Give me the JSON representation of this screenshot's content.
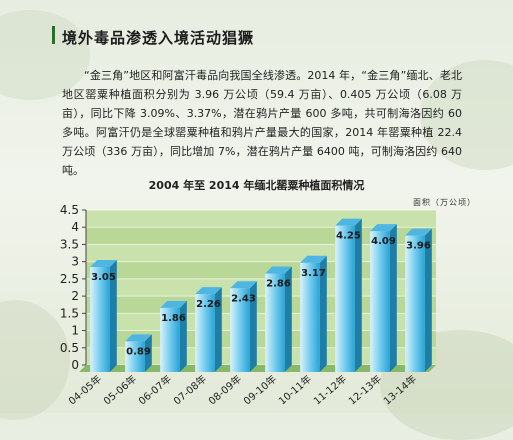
{
  "article": {
    "title": "境外毒品渗透入境活动猖獗",
    "paragraph": "“金三角”地区和阿富汗毒品向我国全线渗透。2014 年，“金三角”缅北、老北地区罂粟种植面积分别为 3.96 万公顷（59.4 万亩）、0.405 万公顷（6.08 万亩），同比下降 3.09%、3.37%，潜在鸦片产量 600 多吨，共可制海洛因约 60 多吨。阿富汗仍是全球罂粟种植和鸦片产量最大的国家，2014 年罂粟种植 22.4 万公顷（336 万亩），同比增加 7%，潜在鸦片产量 6400 吨，可制海洛因约 640 吨。"
  },
  "chart_data": {
    "type": "bar",
    "title": "2004 年至 2014 年缅北罂粟种植面积情况",
    "unit_label": "面积（万公顷）",
    "categories": [
      "04-05年",
      "05-06年",
      "06-07年",
      "07-08年",
      "08-09年",
      "09-10年",
      "10-11年",
      "11-12年",
      "12-13年",
      "13-14年"
    ],
    "values": [
      3.05,
      0.89,
      1.86,
      2.26,
      2.43,
      2.86,
      3.17,
      4.25,
      4.09,
      3.96
    ],
    "y_ticks": [
      "0",
      "0.5",
      "1",
      "1.5",
      "2",
      "2.5",
      "3",
      "3.5",
      "4",
      "4.5"
    ],
    "ylim": [
      0,
      4.5
    ],
    "grid": true,
    "colors": {
      "plot_bg": "#c9e2ab",
      "band_alt": "#b9d796",
      "bar_top": "#4fb6e2",
      "bar_front_light": "#d9f2fb",
      "bar_front_dark": "#29a3d6",
      "bar_side": "#1d7ea8",
      "floor": "#8ab86a"
    }
  }
}
